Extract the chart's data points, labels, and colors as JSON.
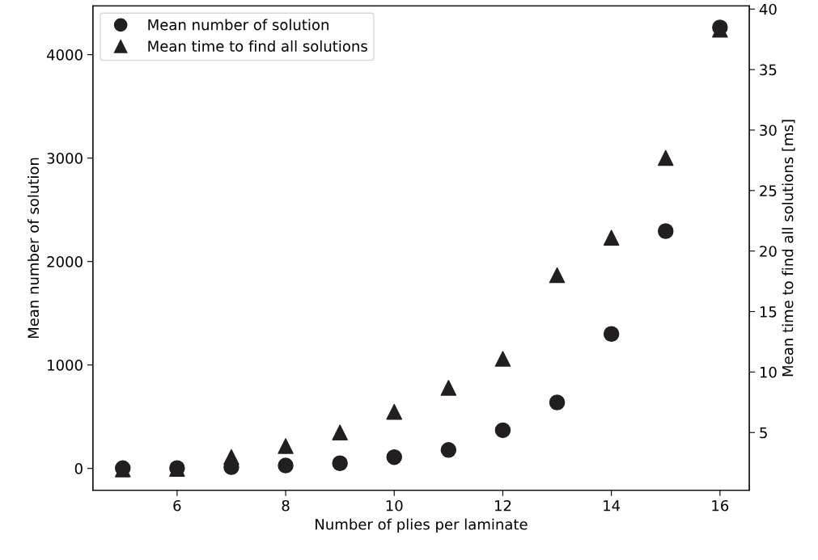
{
  "chart_data": {
    "type": "scatter",
    "xlabel": "Number of plies per laminate",
    "ylabel": "Mean number of solution",
    "y2label": "Mean time to find all solutions [ms]",
    "x": [
      5,
      6,
      7,
      8,
      9,
      10,
      11,
      12,
      13,
      14,
      15,
      16
    ],
    "series": [
      {
        "name": "Mean number of solution",
        "color": "#231f20",
        "marker": "circle",
        "values": [
          3,
          4,
          12,
          28,
          50,
          109,
          178,
          369,
          638,
          1300,
          2294,
          4263
        ]
      },
      {
        "name": "Mean time to find all solutions",
        "color": "#231f20",
        "marker": "triangle",
        "axis": "y2",
        "values": [
          1.95,
          2.0,
          2.97,
          3.88,
          5.0,
          6.71,
          8.69,
          11.09,
          18.0,
          21.1,
          27.7,
          38.3
        ]
      }
    ],
    "xlim": [
      4.45,
      16.54
    ],
    "xticks": [
      6,
      8,
      10,
      12,
      14,
      16
    ],
    "ylim": [
      -212,
      4472
    ],
    "yticks": [
      0,
      1000,
      2000,
      3000,
      4000
    ],
    "y2lim": [
      0.22,
      40.27
    ],
    "y2ticks": [
      5,
      10,
      15,
      20,
      25,
      30,
      35,
      40
    ],
    "grid": false,
    "legend": "top left"
  }
}
